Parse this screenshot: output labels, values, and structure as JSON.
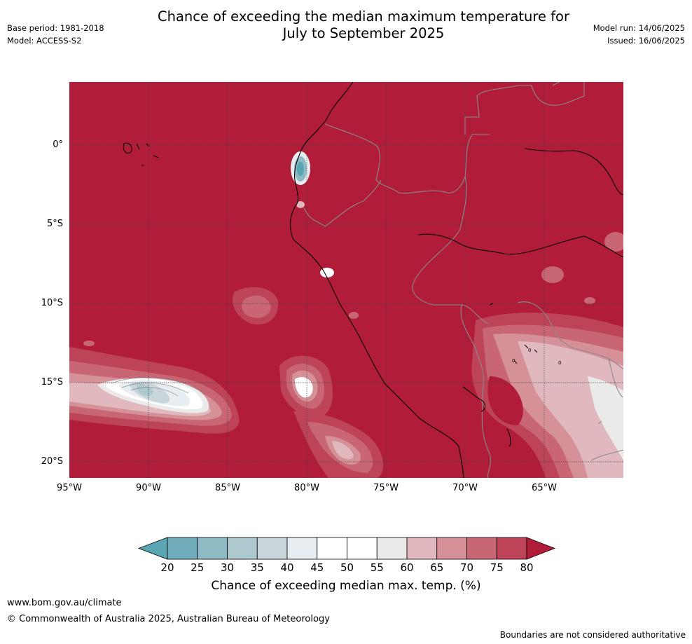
{
  "header": {
    "title_line1": "Chance of exceeding the median maximum temperature for",
    "title_line2": "July to September 2025",
    "base_period": "Base period: 1981-2018",
    "model": "Model: ACCESS-S2",
    "model_run": "Model run: 14/06/2025",
    "issued": "Issued: 16/06/2025"
  },
  "map": {
    "lat_labels": [
      "0°",
      "5°S",
      "10°S",
      "15°S",
      "20°S"
    ],
    "lon_labels": [
      "95°W",
      "90°W",
      "85°W",
      "80°W",
      "75°W",
      "70°W",
      "65°W"
    ],
    "contour_labels": [
      "0",
      "0",
      "0"
    ]
  },
  "legend": {
    "ticks": [
      "20",
      "25",
      "30",
      "35",
      "40",
      "45",
      "50",
      "55",
      "60",
      "65",
      "70",
      "75",
      "80"
    ],
    "title": "Chance of exceeding median max. temp. (%)",
    "colors": [
      "#5aa6b4",
      "#6eadb9",
      "#8dbac3",
      "#adc8ce",
      "#c9d7dc",
      "#e7edf0",
      "#ffffff",
      "#ffffff",
      "#eaeaea",
      "#e0b8bd",
      "#d69198",
      "#c96673",
      "#bd4457",
      "#b11c38"
    ]
  },
  "footer": {
    "website": "www.bom.gov.au/climate",
    "copyright": "© Commonwealth of Australia 2025, Australian Bureau of Meteorology",
    "disclaimer": "Boundaries are not considered authoritative"
  }
}
